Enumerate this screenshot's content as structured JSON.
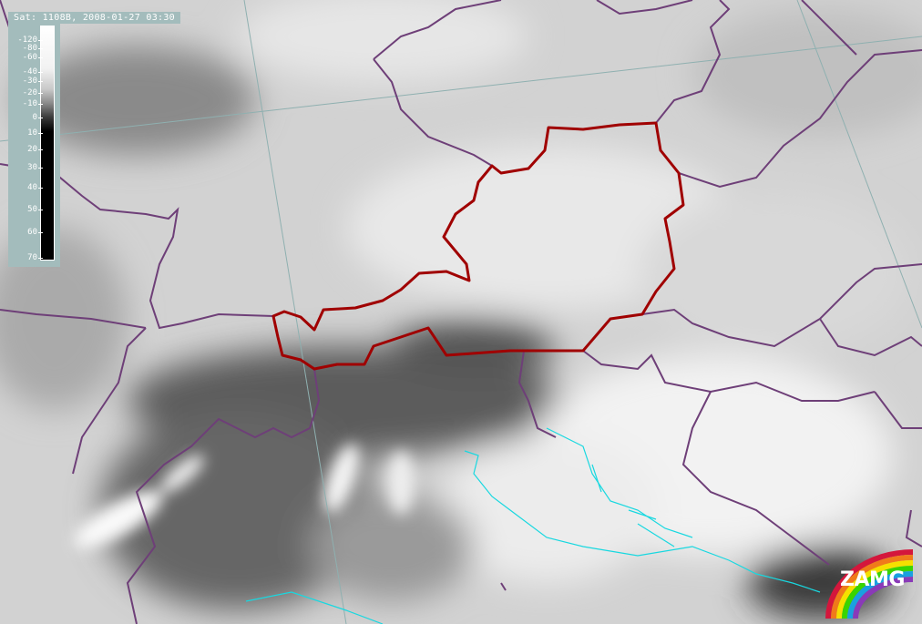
{
  "header": {
    "title": "Sat: 1108B, 2008-01-27 03:30"
  },
  "legend": {
    "ticks": [
      "-120",
      "-80",
      "-60",
      "-40",
      "-30",
      "-20",
      "-10",
      "0",
      "10",
      "20",
      "30",
      "40",
      "50",
      "60",
      "70"
    ],
    "gradient": "white (cold) to black (warm)"
  },
  "logo": {
    "text": "ZAMG",
    "colors": [
      "#d4163c",
      "#f07a1a",
      "#f5e000",
      "#3ad400",
      "#1aa0e0",
      "#8a3ab8"
    ]
  },
  "colors": {
    "austria_border": "#a00000",
    "country_borders": "#6e3f78",
    "coastline": "#18d8e0",
    "graticule": "#8fb0b0",
    "legend_panel": "#a3bcbc"
  }
}
